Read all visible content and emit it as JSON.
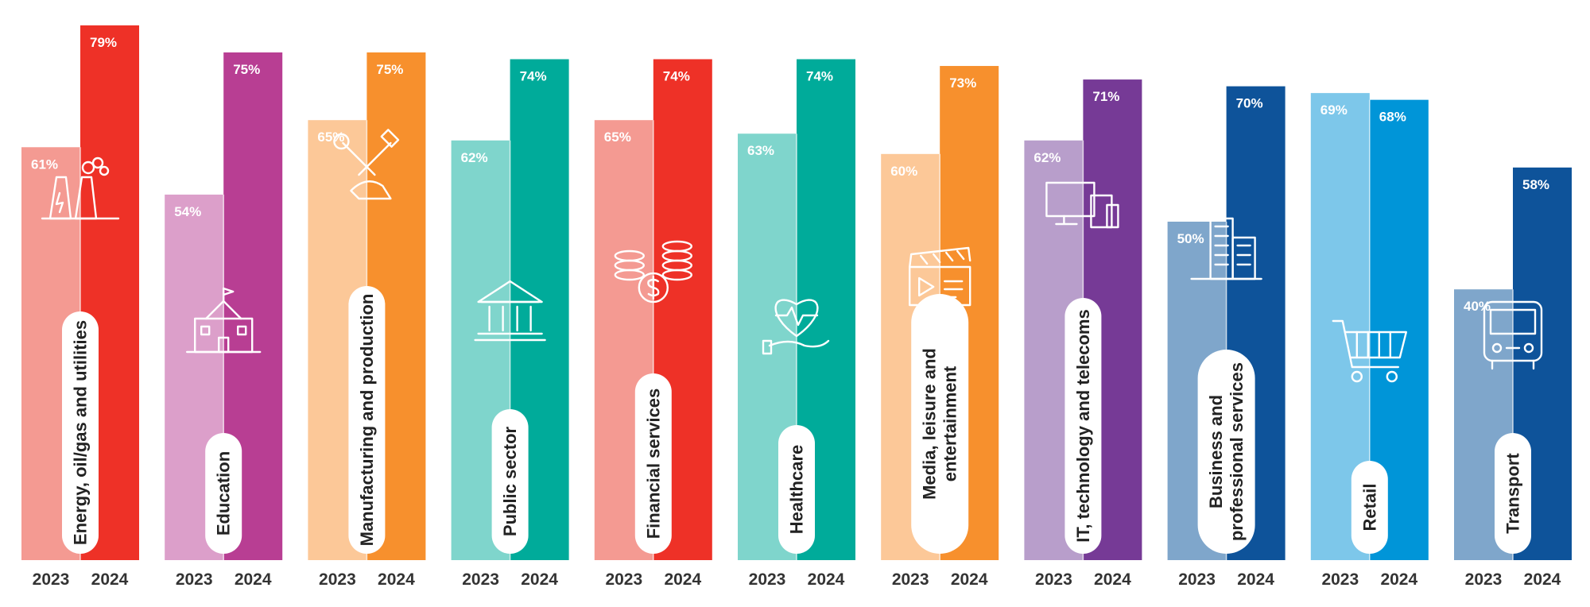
{
  "chart_data": {
    "type": "bar",
    "title": "",
    "xlabel": "",
    "ylabel": "",
    "ylim": [
      0,
      85
    ],
    "grid": false,
    "legend": "none",
    "series_labels": [
      "2023",
      "2024"
    ],
    "categories": [
      {
        "label": [
          "Energy, oil/gas and utilities"
        ],
        "icon": "power-plant-icon",
        "values": [
          61,
          79
        ],
        "value_labels": [
          "61%",
          "79%"
        ],
        "colors": [
          "#f49a92",
          "#ee3127"
        ]
      },
      {
        "label": [
          "Education"
        ],
        "icon": "school-building-icon",
        "values": [
          54,
          75
        ],
        "value_labels": [
          "54%",
          "75%"
        ],
        "colors": [
          "#dc9fca",
          "#b83e93"
        ]
      },
      {
        "label": [
          "Manufacturing and production"
        ],
        "icon": "tools-hand-icon",
        "values": [
          65,
          75
        ],
        "value_labels": [
          "65%",
          "75%"
        ],
        "colors": [
          "#fcc898",
          "#f7902d"
        ]
      },
      {
        "label": [
          "Public sector"
        ],
        "icon": "government-building-icon",
        "values": [
          62,
          74
        ],
        "value_labels": [
          "62%",
          "74%"
        ],
        "colors": [
          "#7fd5cc",
          "#00ab9a"
        ]
      },
      {
        "label": [
          "Financial services"
        ],
        "icon": "coins-dollar-icon",
        "values": [
          65,
          74
        ],
        "value_labels": [
          "65%",
          "74%"
        ],
        "colors": [
          "#f49a92",
          "#ee3127"
        ]
      },
      {
        "label": [
          "Healthcare"
        ],
        "icon": "heart-hand-icon",
        "values": [
          63,
          74
        ],
        "value_labels": [
          "63%",
          "74%"
        ],
        "colors": [
          "#7fd5cc",
          "#00ab9a"
        ]
      },
      {
        "label": [
          "Media, leisure and",
          "entertainment"
        ],
        "icon": "clapperboard-icon",
        "values": [
          60,
          73
        ],
        "value_labels": [
          "60%",
          "73%"
        ],
        "colors": [
          "#fcc898",
          "#f7902d"
        ]
      },
      {
        "label": [
          "IT, technology and telecoms"
        ],
        "icon": "devices-icon",
        "values": [
          62,
          71
        ],
        "value_labels": [
          "62%",
          "71%"
        ],
        "colors": [
          "#b89ecb",
          "#763a96"
        ]
      },
      {
        "label": [
          "Business and",
          "professional services"
        ],
        "icon": "office-buildings-icon",
        "values": [
          50,
          70
        ],
        "value_labels": [
          "50%",
          "70%"
        ],
        "colors": [
          "#7fa6cb",
          "#0e539a"
        ]
      },
      {
        "label": [
          "Retail"
        ],
        "icon": "shopping-cart-icon",
        "values": [
          69,
          68
        ],
        "value_labels": [
          "69%",
          "68%"
        ],
        "colors": [
          "#7dc7ea",
          "#0095d8"
        ]
      },
      {
        "label": [
          "Transport"
        ],
        "icon": "bus-icon",
        "values": [
          40,
          58
        ],
        "value_labels": [
          "40%",
          "58%"
        ],
        "colors": [
          "#7fa6cb",
          "#0e539a"
        ]
      }
    ]
  }
}
